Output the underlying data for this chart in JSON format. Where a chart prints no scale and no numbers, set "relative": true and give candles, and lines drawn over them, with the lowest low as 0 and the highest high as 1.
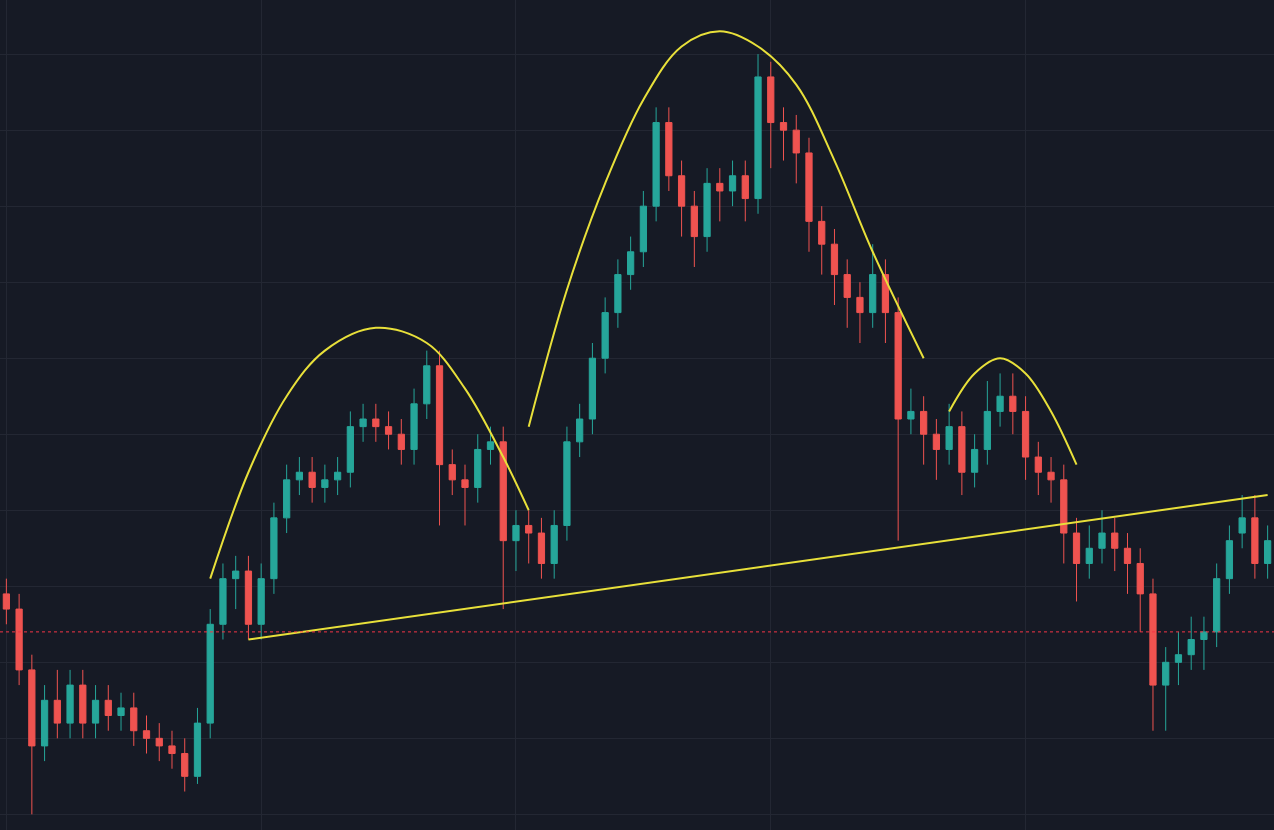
{
  "chart_data": {
    "type": "candlestick",
    "relative": true,
    "grid": true,
    "tick_labels": false,
    "categories": [
      null,
      null,
      null,
      null,
      null,
      null,
      null,
      null,
      null,
      null,
      null,
      null,
      null,
      null,
      null,
      null,
      null,
      null,
      null,
      null,
      null,
      null,
      null,
      null,
      null,
      null,
      null,
      null,
      null,
      null,
      null,
      null,
      null,
      null,
      null,
      null,
      null,
      null,
      null,
      null,
      null,
      null,
      null,
      null,
      null,
      null,
      null,
      null,
      null,
      null,
      null,
      null,
      null,
      null,
      null,
      null,
      null,
      null,
      null,
      null,
      null,
      null,
      null,
      null,
      null,
      null,
      null,
      null,
      null,
      null,
      null,
      null,
      null,
      null,
      null,
      null,
      null,
      null,
      null,
      null,
      null,
      null,
      null,
      null,
      null,
      null,
      null,
      null,
      null,
      null,
      null,
      null,
      null,
      null,
      null,
      null,
      null,
      null,
      null,
      null
    ],
    "colors": [
      "#ef5350",
      "#ef5350",
      "#ef5350",
      "#26a69a",
      "#ef5350",
      "#26a69a",
      "#ef5350",
      "#26a69a",
      "#ef5350",
      "#26a69a",
      "#ef5350",
      "#ef5350",
      "#ef5350",
      "#ef5350",
      "#ef5350",
      "#26a69a",
      "#26a69a",
      "#26a69a",
      "#26a69a",
      "#ef5350",
      "#26a69a",
      "#26a69a",
      "#26a69a",
      "#26a69a",
      "#ef5350",
      "#26a69a",
      "#26a69a",
      "#26a69a",
      "#26a69a",
      "#ef5350",
      "#ef5350",
      "#ef5350",
      "#26a69a",
      "#26a69a",
      "#ef5350",
      "#ef5350",
      "#ef5350",
      "#26a69a",
      "#26a69a",
      "#ef5350",
      "#26a69a",
      "#ef5350",
      "#ef5350",
      "#26a69a",
      "#26a69a",
      "#26a69a",
      "#26a69a",
      "#26a69a",
      "#26a69a",
      "#26a69a",
      "#26a69a",
      "#26a69a",
      "#ef5350",
      "#ef5350",
      "#ef5350",
      "#26a69a",
      "#ef5350",
      "#26a69a",
      "#ef5350",
      "#26a69a",
      "#ef5350",
      "#ef5350",
      "#ef5350",
      "#ef5350",
      "#ef5350",
      "#ef5350",
      "#ef5350",
      "#ef5350",
      "#26a69a",
      "#ef5350",
      "#ef5350",
      "#26a69a",
      "#ef5350",
      "#ef5350",
      "#26a69a",
      "#ef5350",
      "#26a69a",
      "#26a69a",
      "#26a69a",
      "#ef5350",
      "#ef5350",
      "#ef5350",
      "#ef5350",
      "#ef5350",
      "#ef5350",
      "#26a69a",
      "#26a69a",
      "#ef5350",
      "#ef5350",
      "#ef5350",
      "#ef5350",
      "#26a69a",
      "#26a69a",
      "#26a69a",
      "#26a69a",
      "#26a69a",
      "#26a69a",
      "#26a69a",
      "#ef5350",
      "#26a69a"
    ],
    "ohlc": [
      [
        0.29,
        0.31,
        0.25,
        0.27
      ],
      [
        0.27,
        0.29,
        0.17,
        0.19
      ],
      [
        0.19,
        0.21,
        0.0,
        0.09
      ],
      [
        0.09,
        0.17,
        0.07,
        0.15
      ],
      [
        0.15,
        0.19,
        0.1,
        0.12
      ],
      [
        0.12,
        0.19,
        0.1,
        0.17
      ],
      [
        0.17,
        0.19,
        0.1,
        0.12
      ],
      [
        0.12,
        0.17,
        0.1,
        0.15
      ],
      [
        0.15,
        0.17,
        0.11,
        0.13
      ],
      [
        0.13,
        0.16,
        0.11,
        0.14
      ],
      [
        0.14,
        0.16,
        0.09,
        0.11
      ],
      [
        0.11,
        0.13,
        0.08,
        0.1
      ],
      [
        0.1,
        0.12,
        0.07,
        0.09
      ],
      [
        0.09,
        0.11,
        0.06,
        0.08
      ],
      [
        0.08,
        0.1,
        0.03,
        0.05
      ],
      [
        0.05,
        0.14,
        0.04,
        0.12
      ],
      [
        0.12,
        0.27,
        0.1,
        0.25
      ],
      [
        0.25,
        0.33,
        0.23,
        0.31
      ],
      [
        0.31,
        0.34,
        0.27,
        0.32
      ],
      [
        0.32,
        0.34,
        0.23,
        0.25
      ],
      [
        0.25,
        0.33,
        0.23,
        0.31
      ],
      [
        0.31,
        0.41,
        0.29,
        0.39
      ],
      [
        0.39,
        0.46,
        0.37,
        0.44
      ],
      [
        0.44,
        0.47,
        0.42,
        0.45
      ],
      [
        0.45,
        0.47,
        0.41,
        0.43
      ],
      [
        0.43,
        0.46,
        0.41,
        0.44
      ],
      [
        0.44,
        0.47,
        0.42,
        0.45
      ],
      [
        0.45,
        0.53,
        0.43,
        0.51
      ],
      [
        0.51,
        0.54,
        0.49,
        0.52
      ],
      [
        0.52,
        0.54,
        0.49,
        0.51
      ],
      [
        0.51,
        0.53,
        0.48,
        0.5
      ],
      [
        0.5,
        0.52,
        0.46,
        0.48
      ],
      [
        0.48,
        0.56,
        0.46,
        0.54
      ],
      [
        0.54,
        0.61,
        0.52,
        0.59
      ],
      [
        0.59,
        0.61,
        0.38,
        0.46
      ],
      [
        0.46,
        0.48,
        0.42,
        0.44
      ],
      [
        0.44,
        0.46,
        0.38,
        0.43
      ],
      [
        0.43,
        0.5,
        0.41,
        0.48
      ],
      [
        0.48,
        0.51,
        0.46,
        0.49
      ],
      [
        0.49,
        0.51,
        0.27,
        0.36
      ],
      [
        0.36,
        0.4,
        0.32,
        0.38
      ],
      [
        0.38,
        0.4,
        0.33,
        0.37
      ],
      [
        0.37,
        0.39,
        0.31,
        0.33
      ],
      [
        0.33,
        0.4,
        0.31,
        0.38
      ],
      [
        0.38,
        0.51,
        0.36,
        0.49
      ],
      [
        0.49,
        0.54,
        0.47,
        0.52
      ],
      [
        0.52,
        0.62,
        0.5,
        0.6
      ],
      [
        0.6,
        0.68,
        0.58,
        0.66
      ],
      [
        0.66,
        0.73,
        0.64,
        0.71
      ],
      [
        0.71,
        0.76,
        0.69,
        0.74
      ],
      [
        0.74,
        0.82,
        0.72,
        0.8
      ],
      [
        0.8,
        0.93,
        0.78,
        0.91
      ],
      [
        0.91,
        0.93,
        0.82,
        0.84
      ],
      [
        0.84,
        0.86,
        0.76,
        0.8
      ],
      [
        0.8,
        0.82,
        0.72,
        0.76
      ],
      [
        0.76,
        0.85,
        0.74,
        0.83
      ],
      [
        0.83,
        0.85,
        0.78,
        0.82
      ],
      [
        0.82,
        0.86,
        0.8,
        0.84
      ],
      [
        0.84,
        0.86,
        0.78,
        0.81
      ],
      [
        0.81,
        1.0,
        0.79,
        0.97
      ],
      [
        0.97,
        0.99,
        0.85,
        0.91
      ],
      [
        0.91,
        0.93,
        0.86,
        0.9
      ],
      [
        0.9,
        0.92,
        0.83,
        0.87
      ],
      [
        0.87,
        0.89,
        0.74,
        0.78
      ],
      [
        0.78,
        0.8,
        0.71,
        0.75
      ],
      [
        0.75,
        0.77,
        0.67,
        0.71
      ],
      [
        0.71,
        0.73,
        0.64,
        0.68
      ],
      [
        0.68,
        0.7,
        0.62,
        0.66
      ],
      [
        0.66,
        0.75,
        0.64,
        0.71
      ],
      [
        0.71,
        0.73,
        0.62,
        0.66
      ],
      [
        0.66,
        0.68,
        0.36,
        0.52
      ],
      [
        0.52,
        0.56,
        0.5,
        0.53
      ],
      [
        0.53,
        0.55,
        0.46,
        0.5
      ],
      [
        0.5,
        0.52,
        0.44,
        0.48
      ],
      [
        0.48,
        0.54,
        0.46,
        0.51
      ],
      [
        0.51,
        0.53,
        0.42,
        0.45
      ],
      [
        0.45,
        0.5,
        0.43,
        0.48
      ],
      [
        0.48,
        0.57,
        0.46,
        0.53
      ],
      [
        0.53,
        0.58,
        0.51,
        0.55
      ],
      [
        0.55,
        0.58,
        0.5,
        0.53
      ],
      [
        0.53,
        0.55,
        0.44,
        0.47
      ],
      [
        0.47,
        0.49,
        0.42,
        0.45
      ],
      [
        0.45,
        0.47,
        0.41,
        0.44
      ],
      [
        0.44,
        0.46,
        0.33,
        0.37
      ],
      [
        0.37,
        0.39,
        0.28,
        0.33
      ],
      [
        0.33,
        0.38,
        0.31,
        0.35
      ],
      [
        0.35,
        0.4,
        0.33,
        0.37
      ],
      [
        0.37,
        0.39,
        0.32,
        0.35
      ],
      [
        0.35,
        0.37,
        0.29,
        0.33
      ],
      [
        0.33,
        0.35,
        0.24,
        0.29
      ],
      [
        0.29,
        0.31,
        0.11,
        0.17
      ],
      [
        0.17,
        0.22,
        0.11,
        0.2
      ],
      [
        0.2,
        0.24,
        0.17,
        0.21
      ],
      [
        0.21,
        0.26,
        0.19,
        0.23
      ],
      [
        0.23,
        0.26,
        0.19,
        0.24
      ],
      [
        0.24,
        0.33,
        0.22,
        0.31
      ],
      [
        0.31,
        0.38,
        0.29,
        0.36
      ],
      [
        0.37,
        0.42,
        0.35,
        0.39
      ],
      [
        0.39,
        0.42,
        0.31,
        0.33
      ],
      [
        0.33,
        0.38,
        0.31,
        0.36
      ]
    ],
    "series": [
      {
        "type": "line",
        "color": "#e8e03a",
        "values": [
          null,
          null,
          null,
          null,
          null,
          null,
          null,
          null,
          null,
          null,
          null,
          null,
          null,
          null,
          null,
          null,
          null,
          null,
          null,
          0.23,
          null,
          null,
          null,
          null,
          null,
          null,
          null,
          null,
          null,
          null,
          null,
          null,
          null,
          null,
          null,
          null,
          null,
          null,
          null,
          null,
          null,
          null,
          null,
          null,
          null,
          null,
          null,
          null,
          null,
          null,
          null,
          null,
          null,
          null,
          null,
          null,
          null,
          null,
          null,
          null,
          null,
          null,
          null,
          null,
          null,
          null,
          null,
          null,
          null,
          null,
          null,
          null,
          null,
          null,
          null,
          null,
          null,
          null,
          null,
          null,
          null,
          null,
          null,
          null,
          null,
          null,
          null,
          null,
          null,
          null,
          null,
          null,
          null,
          null,
          null,
          null,
          null,
          null,
          null,
          0.42
        ]
      },
      {
        "type": "line",
        "color": "#e8e03a",
        "values": [
          null,
          null,
          null,
          null,
          null,
          null,
          null,
          null,
          null,
          null,
          null,
          null,
          null,
          null,
          null,
          null,
          0.31,
          null,
          null,
          0.45,
          null,
          null,
          0.55,
          null,
          null,
          0.61,
          null,
          null,
          null,
          0.64,
          null,
          null,
          null,
          0.62,
          null,
          null,
          0.56,
          null,
          null,
          0.47,
          null,
          0.4,
          null,
          null,
          null,
          null,
          null,
          null,
          null,
          null,
          null,
          null,
          null,
          null,
          null,
          null,
          null,
          null,
          null,
          null,
          null,
          null,
          null,
          null,
          null,
          null,
          null,
          null,
          null,
          null,
          null,
          null,
          null,
          null,
          null,
          null,
          null,
          null,
          null,
          null,
          null,
          null,
          null,
          null,
          null,
          null,
          null,
          null,
          null,
          null,
          null,
          null,
          null,
          null,
          null,
          null,
          null,
          null,
          null,
          null
        ]
      },
      {
        "type": "line",
        "color": "#e8e03a",
        "values": [
          null,
          null,
          null,
          null,
          null,
          null,
          null,
          null,
          null,
          null,
          null,
          null,
          null,
          null,
          null,
          null,
          null,
          null,
          null,
          null,
          null,
          null,
          null,
          null,
          null,
          null,
          null,
          null,
          null,
          null,
          null,
          null,
          null,
          null,
          null,
          null,
          null,
          null,
          null,
          null,
          null,
          0.51,
          null,
          null,
          0.69,
          null,
          null,
          0.83,
          null,
          null,
          0.94,
          null,
          null,
          1.01,
          null,
          null,
          1.03,
          null,
          null,
          1.01,
          null,
          null,
          0.96,
          null,
          null,
          0.86,
          null,
          null,
          0.74,
          null,
          null,
          null,
          0.6,
          null,
          null,
          null,
          null,
          null,
          null,
          null,
          null,
          null,
          null,
          null,
          null,
          null,
          null,
          null,
          null,
          null,
          null,
          null,
          null,
          null,
          null,
          null,
          null,
          null,
          null,
          null
        ]
      },
      {
        "type": "line",
        "color": "#e8e03a",
        "values": [
          null,
          null,
          null,
          null,
          null,
          null,
          null,
          null,
          null,
          null,
          null,
          null,
          null,
          null,
          null,
          null,
          null,
          null,
          null,
          null,
          null,
          null,
          null,
          null,
          null,
          null,
          null,
          null,
          null,
          null,
          null,
          null,
          null,
          null,
          null,
          null,
          null,
          null,
          null,
          null,
          null,
          null,
          null,
          null,
          null,
          null,
          null,
          null,
          null,
          null,
          null,
          null,
          null,
          null,
          null,
          null,
          null,
          null,
          null,
          null,
          null,
          null,
          null,
          null,
          null,
          null,
          null,
          null,
          null,
          null,
          null,
          null,
          null,
          null,
          0.53,
          null,
          0.58,
          null,
          0.6,
          null,
          0.58,
          null,
          0.53,
          null,
          0.46,
          null,
          null,
          null,
          null,
          null,
          null,
          null,
          null,
          null,
          null,
          null,
          null,
          null,
          null,
          null
        ]
      }
    ],
    "ref_lines": [
      {
        "axis": "y",
        "value": 0.24,
        "color": "#f23645",
        "line_style": "dotted"
      }
    ]
  }
}
